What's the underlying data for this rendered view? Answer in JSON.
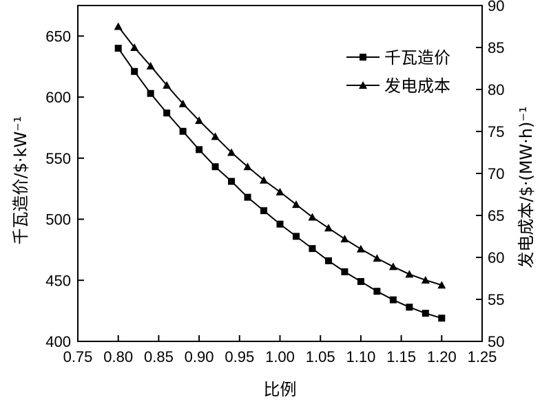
{
  "chart_data": {
    "type": "line",
    "x": [
      0.8,
      0.82,
      0.84,
      0.86,
      0.88,
      0.9,
      0.92,
      0.94,
      0.96,
      0.98,
      1.0,
      1.02,
      1.04,
      1.06,
      1.08,
      1.1,
      1.12,
      1.14,
      1.16,
      1.18,
      1.2
    ],
    "series": [
      {
        "name": "千瓦造价",
        "axis": "left",
        "marker": "square",
        "values": [
          640,
          621,
          603,
          587,
          572,
          557,
          543,
          531,
          518,
          507,
          496,
          486,
          476,
          466,
          457,
          449,
          441,
          434,
          428,
          423,
          419
        ]
      },
      {
        "name": "发电成本",
        "axis": "right",
        "marker": "triangle",
        "values": [
          87.5,
          85.0,
          82.8,
          80.5,
          78.3,
          76.3,
          74.4,
          72.5,
          70.8,
          69.2,
          67.8,
          66.3,
          64.8,
          63.5,
          62.2,
          61.0,
          59.9,
          58.9,
          58.0,
          57.3,
          56.7
        ]
      }
    ],
    "xlabel": "比例",
    "ylabel": "千瓦造价/$·kW⁻¹",
    "ylabel_right": "发电成本/$·(MW·h)⁻¹",
    "xlim": [
      0.75,
      1.25
    ],
    "ylim": [
      400,
      675
    ],
    "ylim_right": [
      50,
      90
    ],
    "xticks": [
      "0.75",
      "0.80",
      "0.85",
      "0.90",
      "0.95",
      "1.00",
      "1.05",
      "1.10",
      "1.15",
      "1.20",
      "1.25"
    ],
    "yticks": [
      "400",
      "450",
      "500",
      "550",
      "600",
      "650"
    ],
    "yticks_right": [
      "50",
      "55",
      "60",
      "65",
      "70",
      "75",
      "80",
      "85",
      "90"
    ],
    "legend_position": "top-right",
    "grid": false
  }
}
